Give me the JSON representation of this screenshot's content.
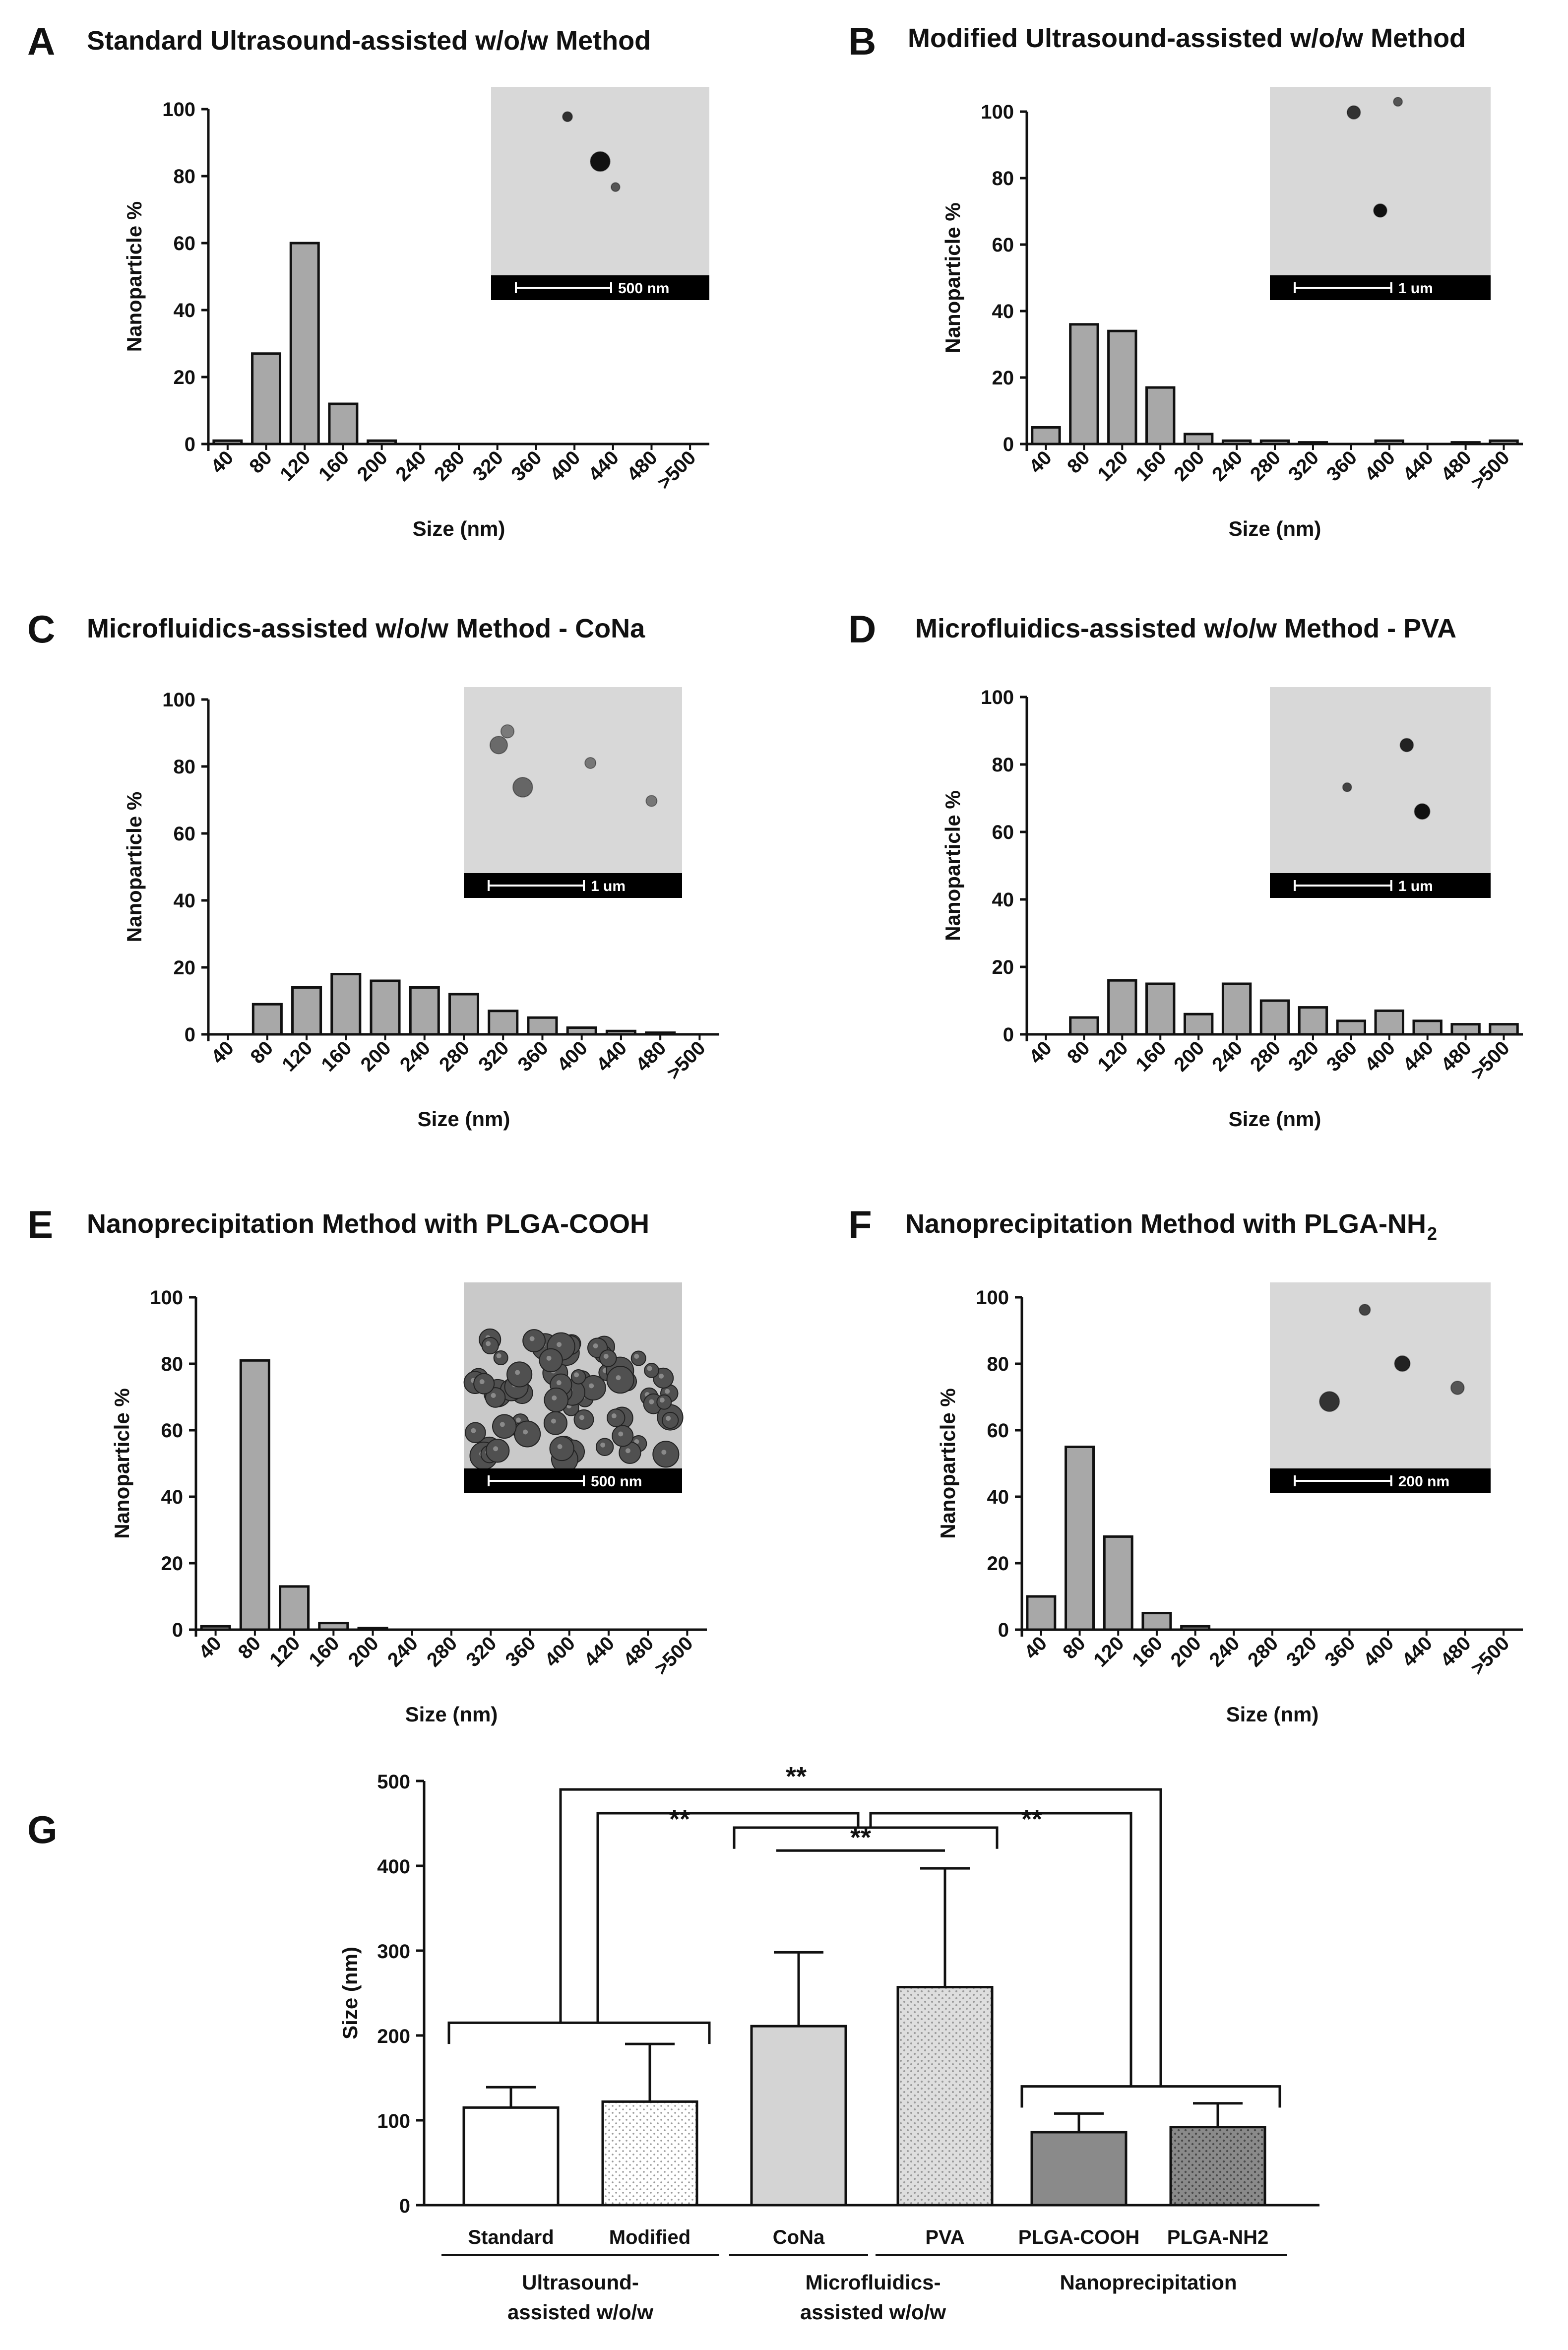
{
  "chart_data": [
    {
      "panel": "A",
      "type": "bar",
      "title": "Standard Ultrasound-assisted w/o/w Method",
      "xlabel": "Size (nm)",
      "ylabel": "Nanoparticle %",
      "ylim": [
        0,
        100
      ],
      "yticks": [
        0,
        20,
        40,
        60,
        80,
        100
      ],
      "categories": [
        "40",
        "80",
        "120",
        "160",
        "200",
        "240",
        "280",
        "320",
        "360",
        "400",
        "440",
        "480",
        ">500"
      ],
      "values": [
        1,
        27,
        60,
        12,
        1,
        0,
        0,
        0,
        0,
        0,
        0,
        0,
        0
      ],
      "inset": {
        "scale_bar": "500 nm",
        "particles": [
          [
            0.35,
            0.28,
            0.045,
            "#303030"
          ],
          [
            0.5,
            0.7,
            0.09,
            "#111111"
          ],
          [
            0.57,
            0.94,
            0.04,
            "#555555"
          ]
        ]
      }
    },
    {
      "panel": "B",
      "type": "bar",
      "title": "Modified Ultrasound-assisted w/o/w Method",
      "xlabel": "Size (nm)",
      "ylabel": "Nanoparticle %",
      "ylim": [
        0,
        100
      ],
      "yticks": [
        0,
        20,
        40,
        60,
        80,
        100
      ],
      "categories": [
        "40",
        "80",
        "120",
        "160",
        "200",
        "240",
        "280",
        "320",
        "360",
        "400",
        "440",
        "480",
        ">500"
      ],
      "values": [
        5,
        36,
        34,
        17,
        3,
        1,
        1,
        0.5,
        0,
        1,
        0,
        0.5,
        1
      ],
      "inset": {
        "scale_bar": "1 um",
        "particles": [
          [
            0.38,
            0.24,
            0.06,
            "#333333"
          ],
          [
            0.58,
            0.14,
            0.04,
            "#555555"
          ],
          [
            0.5,
            1.16,
            0.06,
            "#111111"
          ]
        ]
      }
    },
    {
      "panel": "C",
      "type": "bar",
      "title": "Microfluidics-assisted w/o/w Method - CoNa",
      "xlabel": "Size (nm)",
      "ylabel": "Nanoparticle %",
      "ylim": [
        0,
        100
      ],
      "yticks": [
        0,
        20,
        40,
        60,
        80,
        100
      ],
      "categories": [
        "40",
        "80",
        "120",
        "160",
        "200",
        "240",
        "280",
        "320",
        "360",
        "400",
        "440",
        "480",
        ">500"
      ],
      "values": [
        0,
        9,
        14,
        18,
        16,
        14,
        12,
        7,
        5,
        2,
        1,
        0.5,
        0
      ],
      "inset": {
        "scale_bar": "1 um",
        "particles": [
          [
            0.16,
            0.55,
            0.08,
            "#6a6a6a"
          ],
          [
            0.2,
            0.42,
            0.06,
            "#7a7a7a"
          ],
          [
            0.27,
            0.95,
            0.09,
            "#666666"
          ],
          [
            0.58,
            0.72,
            0.05,
            "#777777"
          ],
          [
            0.86,
            1.08,
            0.05,
            "#777777"
          ]
        ]
      }
    },
    {
      "panel": "D",
      "type": "bar",
      "title": "Microfluidics-assisted w/o/w Method - PVA",
      "xlabel": "Size (nm)",
      "ylabel": "Nanoparticle %",
      "ylim": [
        0,
        100
      ],
      "yticks": [
        0,
        20,
        40,
        60,
        80,
        100
      ],
      "categories": [
        "40",
        "80",
        "120",
        "160",
        "200",
        "240",
        "280",
        "320",
        "360",
        "400",
        "440",
        "480",
        ">500"
      ],
      "values": [
        0,
        5,
        16,
        15,
        6,
        15,
        10,
        8,
        4,
        7,
        4,
        3,
        3
      ],
      "inset": {
        "scale_bar": "1 um",
        "particles": [
          [
            0.62,
            0.55,
            0.06,
            "#222222"
          ],
          [
            0.35,
            0.95,
            0.04,
            "#444444"
          ],
          [
            0.69,
            1.18,
            0.07,
            "#111111"
          ]
        ]
      }
    },
    {
      "panel": "E",
      "type": "bar",
      "title": "Nanoprecipitation Method with PLGA-COOH",
      "xlabel": "Size (nm)",
      "ylabel": "Nanoparticle %",
      "ylim": [
        0,
        100
      ],
      "yticks": [
        0,
        20,
        40,
        60,
        80,
        100
      ],
      "categories": [
        "40",
        "80",
        "120",
        "160",
        "200",
        "240",
        "280",
        "320",
        "360",
        "400",
        "440",
        "480",
        ">500"
      ],
      "values": [
        1,
        81,
        13,
        2,
        0.5,
        0,
        0,
        0,
        0,
        0,
        0,
        0,
        0
      ],
      "inset": {
        "scale_bar": "500 nm",
        "cluster": true
      }
    },
    {
      "panel": "F",
      "type": "bar",
      "title": "Nanoprecipitation Method with PLGA-NH",
      "title_sub": "2",
      "xlabel": "Size (nm)",
      "ylabel": "Nanoparticle %",
      "ylim": [
        0,
        100
      ],
      "yticks": [
        0,
        20,
        40,
        60,
        80,
        100
      ],
      "categories": [
        "40",
        "80",
        "120",
        "160",
        "200",
        "240",
        "280",
        "320",
        "360",
        "400",
        "440",
        "480",
        ">500"
      ],
      "values": [
        10,
        55,
        28,
        5,
        1,
        0,
        0,
        0,
        0,
        0,
        0,
        0,
        0
      ],
      "inset": {
        "scale_bar": "200 nm",
        "particles": [
          [
            0.43,
            0.26,
            0.05,
            "#444444"
          ],
          [
            0.6,
            0.77,
            0.07,
            "#222222"
          ],
          [
            0.27,
            1.13,
            0.09,
            "#333333"
          ],
          [
            0.85,
            1.0,
            0.06,
            "#555555"
          ]
        ]
      }
    },
    {
      "panel": "G",
      "type": "bar",
      "ylabel": "Size (nm)",
      "ylim": [
        0,
        500
      ],
      "yticks": [
        0,
        100,
        200,
        300,
        400,
        500
      ],
      "categories": [
        "Standard",
        "Modified",
        "CoNa",
        "PVA",
        "PLGA-COOH",
        "PLGA-NH2"
      ],
      "values": [
        115,
        122,
        211,
        257,
        86,
        92
      ],
      "errors": [
        24,
        68,
        87,
        140,
        22,
        28
      ],
      "fills": [
        "#ffffff",
        "dots-light",
        "#d4d4d4",
        "dots-gray",
        "#8a8a8a",
        "dots-dark"
      ],
      "groups": [
        {
          "label_lines": [
            "Ultrasound-",
            "assisted w/o/w"
          ],
          "members": [
            0,
            1
          ]
        },
        {
          "label_lines": [
            "Microfluidics-",
            "assisted w/o/w"
          ],
          "members": [
            2,
            3
          ]
        },
        {
          "label_lines": [
            "Nanoprecipitation"
          ],
          "members": [
            4,
            5
          ]
        }
      ],
      "significance": [
        {
          "between": "Ultrasound-assisted vs Nanoprecipitation",
          "label": "**"
        },
        {
          "between": "Ultrasound-assisted vs Microfluidics-assisted",
          "label": "**"
        },
        {
          "between": "Microfluidics-assisted vs Nanoprecipitation",
          "label": "**"
        },
        {
          "between": "CoNa vs PVA",
          "label": "**"
        }
      ]
    }
  ]
}
